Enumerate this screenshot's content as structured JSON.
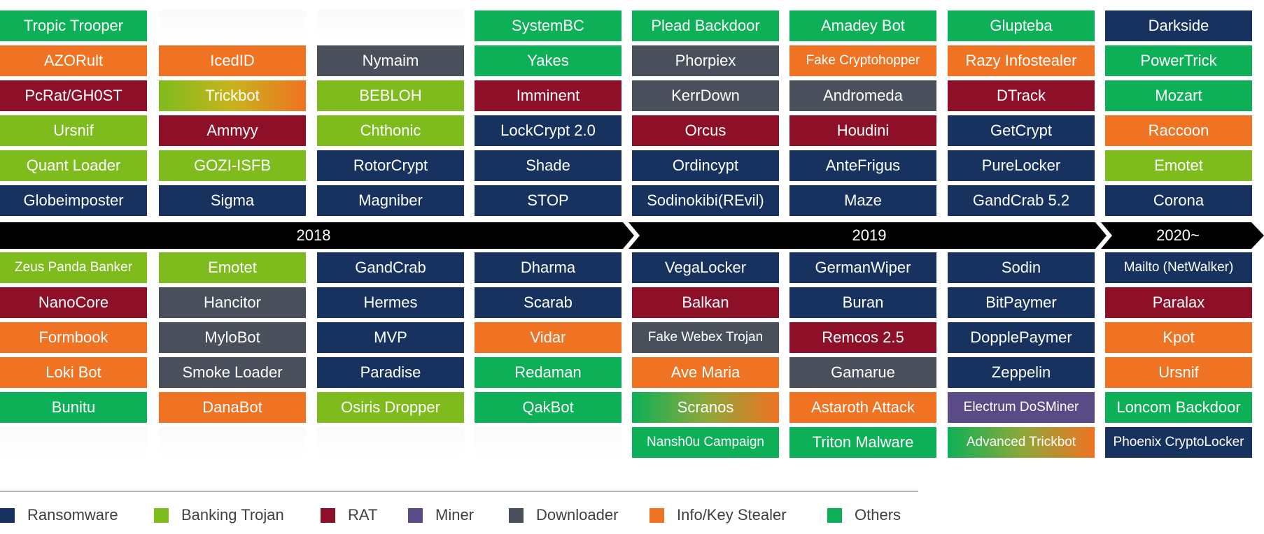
{
  "categories": {
    "ransomware": {
      "label": "Ransomware",
      "color": "#17325f"
    },
    "banking": {
      "label": "Banking Trojan",
      "color": "#7ebc1e"
    },
    "rat": {
      "label": "RAT",
      "color": "#8e1028"
    },
    "miner": {
      "label": "Miner",
      "color": "#5a4a86"
    },
    "downloader": {
      "label": "Downloader",
      "color": "#4a505b"
    },
    "stealer": {
      "label": "Info/Key Stealer",
      "color": "#ef7322"
    },
    "others": {
      "label": "Others",
      "color": "#0db057"
    }
  },
  "legend": [
    {
      "key": "ransomware",
      "label": "Ransomware"
    },
    {
      "key": "banking",
      "label": "Banking Trojan"
    },
    {
      "key": "rat",
      "label": "RAT"
    },
    {
      "key": "miner",
      "label": "Miner"
    },
    {
      "key": "downloader",
      "label": "Downloader"
    },
    {
      "key": "stealer",
      "label": "Info/Key Stealer"
    },
    {
      "key": "others",
      "label": "Others"
    }
  ],
  "timeline": {
    "years": [
      "2018",
      "2019",
      "2020~"
    ]
  },
  "columns": [
    {
      "above": [
        {
          "name": "Tropic Trooper",
          "cat": "others"
        },
        {
          "name": "AZORult",
          "cat": "stealer"
        },
        {
          "name": "PcRat/GH0ST",
          "cat": "rat"
        },
        {
          "name": "Ursnif",
          "cat": "banking"
        },
        {
          "name": "Quant Loader",
          "cat": "banking"
        },
        {
          "name": "Globeimposter",
          "cat": "ransomware"
        }
      ],
      "below": [
        {
          "name": "Zeus Panda Banker",
          "cat": "banking",
          "small": true
        },
        {
          "name": "NanoCore",
          "cat": "rat"
        },
        {
          "name": "Formbook",
          "cat": "stealer"
        },
        {
          "name": "Loki Bot",
          "cat": "stealer"
        },
        {
          "name": "Bunitu",
          "cat": "others"
        },
        {
          "name": "",
          "cat": "empty"
        }
      ]
    },
    {
      "above": [
        {
          "name": "",
          "cat": "empty"
        },
        {
          "name": "IcedID",
          "cat": "stealer"
        },
        {
          "name": "Trickbot",
          "cat": "grad-bank-stealer"
        },
        {
          "name": "Ammyy",
          "cat": "rat"
        },
        {
          "name": "GOZI-ISFB",
          "cat": "banking"
        },
        {
          "name": "Sigma",
          "cat": "ransomware"
        }
      ],
      "below": [
        {
          "name": "Emotet",
          "cat": "banking"
        },
        {
          "name": "Hancitor",
          "cat": "downloader"
        },
        {
          "name": "MyloBot",
          "cat": "downloader"
        },
        {
          "name": "Smoke Loader",
          "cat": "downloader"
        },
        {
          "name": "DanaBot",
          "cat": "stealer"
        },
        {
          "name": "",
          "cat": "empty"
        }
      ]
    },
    {
      "above": [
        {
          "name": "",
          "cat": "empty"
        },
        {
          "name": "Nymaim",
          "cat": "downloader"
        },
        {
          "name": "BEBLOH",
          "cat": "banking"
        },
        {
          "name": "Chthonic",
          "cat": "banking"
        },
        {
          "name": "RotorCrypt",
          "cat": "ransomware"
        },
        {
          "name": "Magniber",
          "cat": "ransomware"
        }
      ],
      "below": [
        {
          "name": "GandCrab",
          "cat": "ransomware"
        },
        {
          "name": "Hermes",
          "cat": "ransomware"
        },
        {
          "name": "MVP",
          "cat": "ransomware"
        },
        {
          "name": "Paradise",
          "cat": "ransomware"
        },
        {
          "name": "Osiris Dropper",
          "cat": "banking"
        },
        {
          "name": "",
          "cat": "empty"
        }
      ]
    },
    {
      "above": [
        {
          "name": "SystemBC",
          "cat": "others"
        },
        {
          "name": "Yakes",
          "cat": "others"
        },
        {
          "name": "Imminent",
          "cat": "rat"
        },
        {
          "name": "LockCrypt 2.0",
          "cat": "ransomware"
        },
        {
          "name": "Shade",
          "cat": "ransomware"
        },
        {
          "name": "STOP",
          "cat": "ransomware"
        }
      ],
      "below": [
        {
          "name": "Dharma",
          "cat": "ransomware"
        },
        {
          "name": "Scarab",
          "cat": "ransomware"
        },
        {
          "name": "Vidar",
          "cat": "stealer"
        },
        {
          "name": "Redaman",
          "cat": "others"
        },
        {
          "name": "QakBot",
          "cat": "others"
        },
        {
          "name": "",
          "cat": "empty"
        }
      ]
    },
    {
      "above": [
        {
          "name": "Plead Backdoor",
          "cat": "others"
        },
        {
          "name": "Phorpiex",
          "cat": "downloader"
        },
        {
          "name": "KerrDown",
          "cat": "downloader"
        },
        {
          "name": "Orcus",
          "cat": "rat"
        },
        {
          "name": "Ordincypt",
          "cat": "ransomware"
        },
        {
          "name": "Sodinokibi(REvil)",
          "cat": "ransomware"
        }
      ],
      "below": [
        {
          "name": "VegaLocker",
          "cat": "ransomware"
        },
        {
          "name": "Balkan",
          "cat": "rat"
        },
        {
          "name": "Fake Webex Trojan",
          "cat": "downloader",
          "small": true
        },
        {
          "name": "Ave Maria",
          "cat": "stealer"
        },
        {
          "name": "Scranos",
          "cat": "grad-others-stealer"
        },
        {
          "name": "Nansh0u Campaign",
          "cat": "others",
          "small": true
        }
      ]
    },
    {
      "above": [
        {
          "name": "Amadey Bot",
          "cat": "others"
        },
        {
          "name": "Fake Cryptohopper",
          "cat": "stealer",
          "small": true
        },
        {
          "name": "Andromeda",
          "cat": "downloader"
        },
        {
          "name": "Houdini",
          "cat": "rat"
        },
        {
          "name": "AnteFrigus",
          "cat": "ransomware"
        },
        {
          "name": "Maze",
          "cat": "ransomware"
        }
      ],
      "below": [
        {
          "name": "GermanWiper",
          "cat": "ransomware"
        },
        {
          "name": "Buran",
          "cat": "ransomware"
        },
        {
          "name": "Remcos 2.5",
          "cat": "rat"
        },
        {
          "name": "Gamarue",
          "cat": "downloader"
        },
        {
          "name": "Astaroth Attack",
          "cat": "stealer"
        },
        {
          "name": "Triton Malware",
          "cat": "others"
        }
      ]
    },
    {
      "above": [
        {
          "name": "Glupteba",
          "cat": "others"
        },
        {
          "name": "Razy Infostealer",
          "cat": "stealer"
        },
        {
          "name": "DTrack",
          "cat": "rat"
        },
        {
          "name": "GetCrypt",
          "cat": "ransomware"
        },
        {
          "name": "PureLocker",
          "cat": "ransomware"
        },
        {
          "name": "GandCrab 5.2",
          "cat": "ransomware"
        }
      ],
      "below": [
        {
          "name": "Sodin",
          "cat": "ransomware"
        },
        {
          "name": "BitPaymer",
          "cat": "ransomware"
        },
        {
          "name": "DopplePaymer",
          "cat": "ransomware"
        },
        {
          "name": "Zeppelin",
          "cat": "ransomware"
        },
        {
          "name": "Electrum DoSMiner",
          "cat": "miner",
          "small": true
        },
        {
          "name": "Advanced Trickbot",
          "cat": "grad-others-stealer",
          "small": true
        }
      ]
    },
    {
      "above": [
        {
          "name": "Darkside",
          "cat": "ransomware"
        },
        {
          "name": "PowerTrick",
          "cat": "others"
        },
        {
          "name": "Mozart",
          "cat": "others"
        },
        {
          "name": "Raccoon",
          "cat": "stealer"
        },
        {
          "name": "Emotet",
          "cat": "banking"
        },
        {
          "name": "Corona",
          "cat": "ransomware"
        }
      ],
      "below": [
        {
          "name": "Mailto (NetWalker)",
          "cat": "ransomware",
          "small": true
        },
        {
          "name": "Paralax",
          "cat": "rat"
        },
        {
          "name": "Kpot",
          "cat": "stealer"
        },
        {
          "name": "Ursnif",
          "cat": "stealer"
        },
        {
          "name": "Loncom Backdoor",
          "cat": "others"
        },
        {
          "name": "Phoenix CryptoLocker",
          "cat": "ransomware",
          "small": true
        }
      ]
    }
  ]
}
